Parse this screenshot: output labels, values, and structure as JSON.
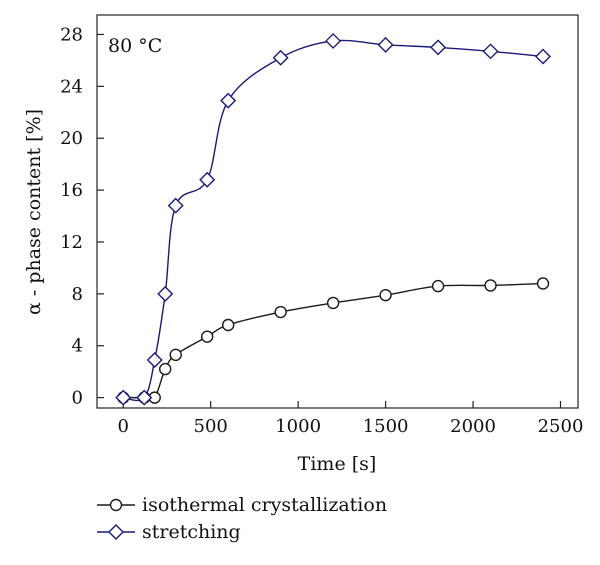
{
  "chart_data": {
    "type": "line",
    "annotation": "80 °C",
    "xlabel": "Time [s]",
    "ylabel": "α - phase content [%]",
    "xlim": [
      -150,
      2600
    ],
    "ylim": [
      -0.8,
      29.5
    ],
    "xticks": [
      0,
      500,
      1000,
      1500,
      2000,
      2500
    ],
    "yticks": [
      0,
      4,
      8,
      12,
      16,
      20,
      24,
      28
    ],
    "grid": false,
    "legend_position": "bottom-left, below plot",
    "series": [
      {
        "name": "isothermal crystallization",
        "marker": "circle",
        "color": "#1a1a1a",
        "x": [
          0,
          120,
          180,
          240,
          300,
          480,
          600,
          900,
          1200,
          1500,
          1800,
          2100,
          2400
        ],
        "y": [
          0,
          0,
          0,
          2.2,
          3.3,
          4.7,
          5.6,
          6.6,
          7.3,
          7.9,
          8.6,
          8.65,
          8.8
        ]
      },
      {
        "name": "stretching",
        "marker": "diamond",
        "color": "#1a1a7a",
        "x": [
          0,
          120,
          180,
          240,
          300,
          480,
          600,
          900,
          1200,
          1500,
          1800,
          2100,
          2400
        ],
        "y": [
          0,
          0,
          2.9,
          8.0,
          14.8,
          16.8,
          22.9,
          26.2,
          27.5,
          27.2,
          27.0,
          26.7,
          26.3
        ]
      }
    ]
  }
}
